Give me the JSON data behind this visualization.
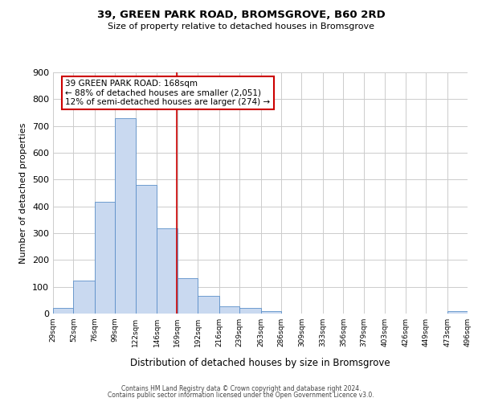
{
  "title": "39, GREEN PARK ROAD, BROMSGROVE, B60 2RD",
  "subtitle": "Size of property relative to detached houses in Bromsgrove",
  "xlabel": "Distribution of detached houses by size in Bromsgrove",
  "ylabel": "Number of detached properties",
  "bin_edges": [
    29,
    52,
    76,
    99,
    122,
    146,
    169,
    192,
    216,
    239,
    263,
    286,
    309,
    333,
    356,
    379,
    403,
    426,
    449,
    473,
    496
  ],
  "bin_counts": [
    20,
    122,
    418,
    730,
    480,
    318,
    133,
    65,
    28,
    20,
    10,
    0,
    0,
    0,
    0,
    0,
    0,
    0,
    0,
    8
  ],
  "bar_color": "#c9d9f0",
  "bar_edge_color": "#5b8fc9",
  "vline_x": 168,
  "vline_color": "#cc0000",
  "annotation_line1": "39 GREEN PARK ROAD: 168sqm",
  "annotation_line2": "← 88% of detached houses are smaller (2,051)",
  "annotation_line3": "12% of semi-detached houses are larger (274) →",
  "annotation_box_color": "#cc0000",
  "annotation_box_bg": "#ffffff",
  "ylim": [
    0,
    900
  ],
  "yticks": [
    0,
    100,
    200,
    300,
    400,
    500,
    600,
    700,
    800,
    900
  ],
  "tick_labels": [
    "29sqm",
    "52sqm",
    "76sqm",
    "99sqm",
    "122sqm",
    "146sqm",
    "169sqm",
    "192sqm",
    "216sqm",
    "239sqm",
    "263sqm",
    "286sqm",
    "309sqm",
    "333sqm",
    "356sqm",
    "379sqm",
    "403sqm",
    "426sqm",
    "449sqm",
    "473sqm",
    "496sqm"
  ],
  "footer_line1": "Contains HM Land Registry data © Crown copyright and database right 2024.",
  "footer_line2": "Contains public sector information licensed under the Open Government Licence v3.0.",
  "bg_color": "#ffffff",
  "grid_color": "#cccccc"
}
